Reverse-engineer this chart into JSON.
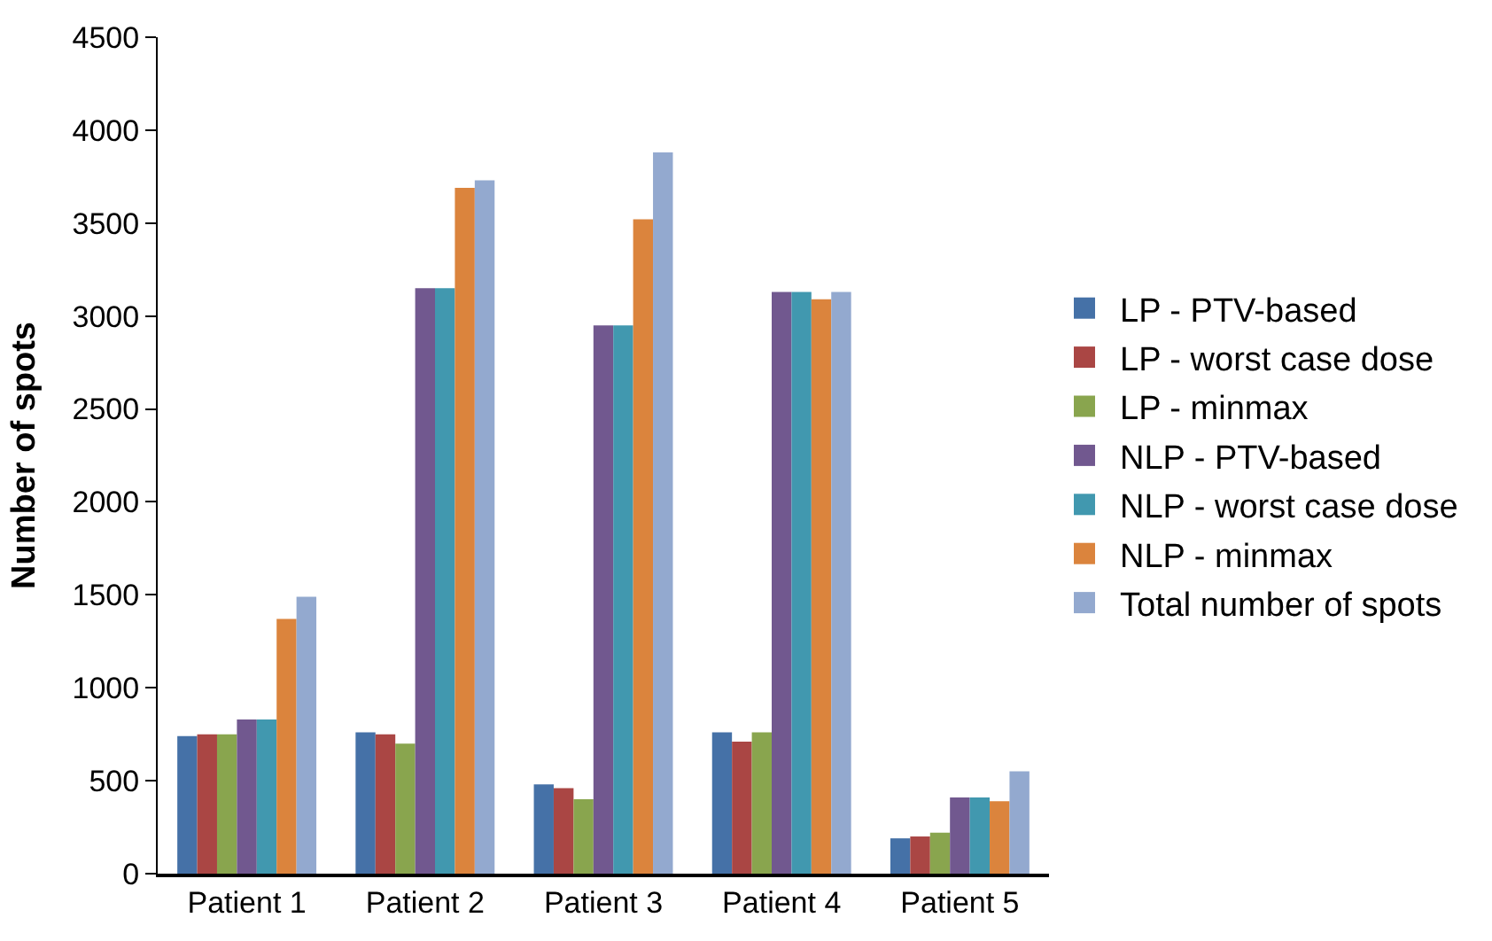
{
  "chart_data": {
    "type": "bar",
    "ylabel": "Number of spots",
    "categories": [
      "Patient 1",
      "Patient 2",
      "Patient 3",
      "Patient 4",
      "Patient 5"
    ],
    "series": [
      {
        "name": "LP - PTV-based",
        "color": "#4571a7",
        "values": [
          740,
          760,
          480,
          760,
          190
        ]
      },
      {
        "name": "LP - worst case dose",
        "color": "#aa4644",
        "values": [
          750,
          750,
          460,
          710,
          200
        ]
      },
      {
        "name": "LP - minmax",
        "color": "#89a54e",
        "values": [
          750,
          700,
          400,
          760,
          220
        ]
      },
      {
        "name": "NLP - PTV-based",
        "color": "#71588f",
        "values": [
          830,
          3150,
          2950,
          3130,
          410
        ]
      },
      {
        "name": "NLP - worst case dose",
        "color": "#4198af",
        "values": [
          830,
          3150,
          2950,
          3130,
          410
        ]
      },
      {
        "name": "NLP - minmax",
        "color": "#db843d",
        "values": [
          1370,
          3690,
          3520,
          3090,
          390
        ]
      },
      {
        "name": "Total number of spots",
        "color": "#93a9cf",
        "values": [
          1490,
          3730,
          3880,
          3130,
          550
        ]
      }
    ],
    "ylim": [
      0,
      4500
    ],
    "yticks": [
      0,
      500,
      1000,
      1500,
      2000,
      2500,
      3000,
      3500,
      4000,
      4500
    ],
    "grid": false,
    "legend": "right"
  }
}
